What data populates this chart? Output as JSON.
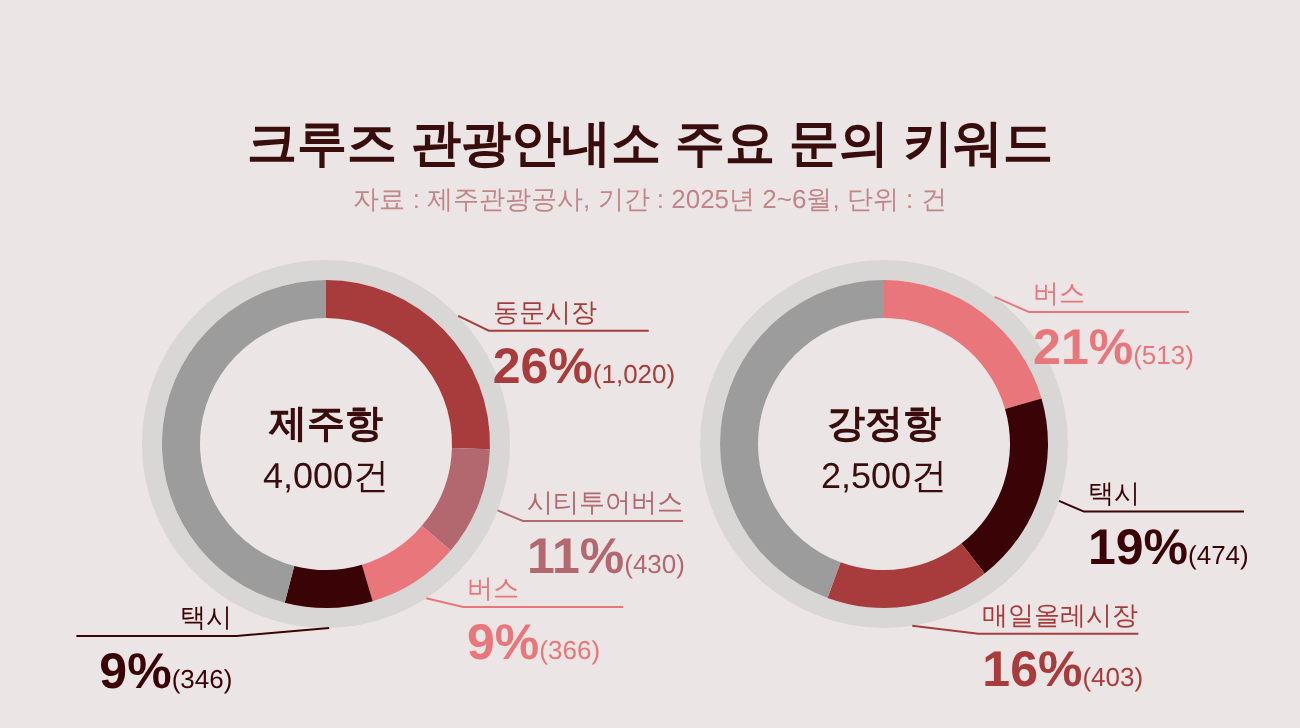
{
  "chart_data": [
    {
      "type": "donut",
      "title": "크루즈 관광안내소 주요 문의 키워드",
      "subtitle": "자료 : 제주관광공사, 기간 : 2025년 2~6월, 단위 : 건",
      "categories": [
        "동문시장",
        "시티투어버스",
        "버스",
        "택시",
        null
      ],
      "values": [
        1020,
        430,
        366,
        346,
        1838
      ],
      "colors": [
        "#a83c3c",
        "#b3686f",
        "#e8767b",
        "#3a0306",
        "#9c9c9c"
      ],
      "value_labels": [
        "26%(1,020)",
        "11%(430)",
        "9%(366)",
        "9%(346)",
        null
      ],
      "annotations": [
        "제주항",
        "4,000건"
      ]
    },
    {
      "type": "donut",
      "categories": [
        "버스",
        "택시",
        "매일올레시장",
        null
      ],
      "values": [
        513,
        474,
        403,
        1110
      ],
      "colors": [
        "#e8767b",
        "#3a0306",
        "#a83c3c",
        "#9c9c9c"
      ],
      "value_labels": [
        "21%(513)",
        "19%(474)",
        "16%(403)",
        null
      ],
      "annotations": [
        "강정항",
        "2,500건"
      ]
    }
  ]
}
